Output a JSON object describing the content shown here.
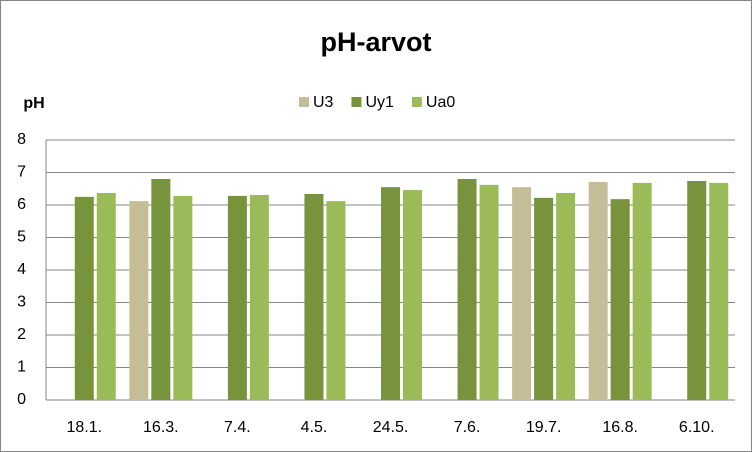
{
  "chart_data": {
    "type": "bar",
    "title": "pH-arvot",
    "y_label": "pH",
    "categories": [
      "18.1.",
      "16.3.",
      "7.4.",
      "4.5.",
      "24.5.",
      "7.6.",
      "19.7.",
      "16.8.",
      "6.10."
    ],
    "series": [
      {
        "name": "U3",
        "color": "#c4bd97",
        "values": [
          null,
          6.12,
          null,
          null,
          null,
          null,
          6.55,
          6.71,
          null
        ]
      },
      {
        "name": "Uy1",
        "color": "#77933c",
        "values": [
          6.25,
          6.8,
          6.28,
          6.34,
          6.55,
          6.8,
          6.22,
          6.18,
          6.74
        ]
      },
      {
        "name": "Ua0",
        "color": "#9bbb59",
        "values": [
          6.37,
          6.28,
          6.31,
          6.12,
          6.46,
          6.62,
          6.37,
          6.68,
          6.68
        ]
      }
    ],
    "ylim": [
      0,
      8
    ],
    "yticks": [
      0,
      1,
      2,
      3,
      4,
      5,
      6,
      7,
      8
    ],
    "grid": true
  }
}
